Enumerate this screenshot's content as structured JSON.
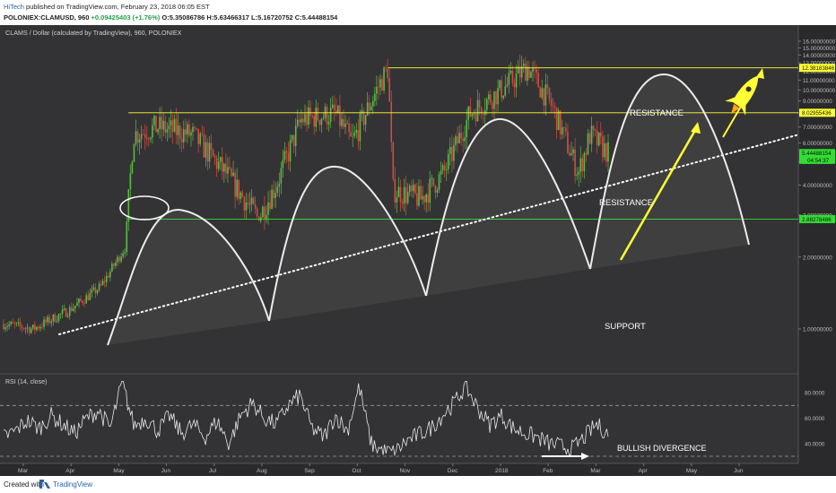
{
  "header": {
    "author": "HiTech",
    "published": "published on TradingView.com, February 23, 2018 06:05 EST",
    "symbol_line": "POLONIEX:CLAMUSD, 960",
    "change": "+0.09425403 (+1.76%)",
    "ohlc": "O:5.35086786 H:5.63466317 L:5.16720752 C:5.44488154"
  },
  "chart_title": "CLAMS / Dollar (calculated by TradingView), 960, POLONIEX",
  "price_axis": {
    "ticks": [
      {
        "value": 1,
        "label": "1.00000000"
      },
      {
        "value": 2,
        "label": "2.00000000"
      },
      {
        "value": 3,
        "label": "3.00000000"
      },
      {
        "value": 4,
        "label": "4.00000000"
      },
      {
        "value": 5,
        "label": "5.00000000"
      },
      {
        "value": 6,
        "label": "6.00000000"
      },
      {
        "value": 7,
        "label": "7.00000000"
      },
      {
        "value": 8,
        "label": "8.00000000"
      },
      {
        "value": 9,
        "label": "9.00000000"
      },
      {
        "value": 10,
        "label": "10.00000000"
      },
      {
        "value": 11,
        "label": "11.00000000"
      },
      {
        "value": 12,
        "label": "12.00000000"
      },
      {
        "value": 13,
        "label": "13.00000000"
      },
      {
        "value": 14,
        "label": "14.00000000"
      },
      {
        "value": 15,
        "label": "15.00000000"
      },
      {
        "value": 16,
        "label": "16.00000000"
      }
    ],
    "markers": [
      {
        "value": 12.38183846,
        "label": "12.38183846",
        "color": "#ffff33"
      },
      {
        "value": 8.02955436,
        "label": "8.02955436",
        "color": "#ffff33"
      },
      {
        "value": 5.44488154,
        "label": "5.44488154",
        "color": "#33dd33"
      },
      {
        "value": 2.88278486,
        "label": "2.88278486",
        "color": "#33dd33"
      }
    ],
    "countdown": "04:54:37"
  },
  "rsi": {
    "title": "RSI (14, close)",
    "ticks": [
      {
        "value": 80,
        "label": "80.0000"
      },
      {
        "value": 60,
        "label": "60.0000"
      },
      {
        "value": 40,
        "label": "40.0000"
      }
    ]
  },
  "time_axis": [
    "Mar",
    "Apr",
    "May",
    "Jun",
    "Jul",
    "Aug",
    "Sep",
    "Oct",
    "Nov",
    "Dec",
    "2018",
    "Feb",
    "Mar",
    "Apr",
    "May",
    "Jun"
  ],
  "annotations": {
    "resistance_upper": "RESISTANCE",
    "resistance_lower": "RESISTANCE",
    "support": "SUPPORT",
    "divergence": "BULLISH DIVERGENCE"
  },
  "footer": {
    "created_with": "Created with",
    "brand": "TradingView"
  },
  "colors": {
    "background": "#333335",
    "up": "#5fb846",
    "down": "#d74b42",
    "resistance": "#ffff33",
    "support": "#33dd33",
    "annotation": "#ffffff",
    "rocket": "#ffff33"
  },
  "chart_data": {
    "type": "candlestick",
    "title": "CLAMS / Dollar (calculated by TradingView), 960, POLONIEX",
    "yscale": "log",
    "ylim": [
      1,
      16
    ],
    "x_range": [
      "2017-02",
      "2018-06"
    ],
    "series": [
      {
        "name": "CLAMUSD",
        "path": [
          {
            "x": "2017-02-20",
            "y": 1.05
          },
          {
            "x": "2017-03-10",
            "y": 1.0
          },
          {
            "x": "2017-04-01",
            "y": 1.2
          },
          {
            "x": "2017-04-20",
            "y": 1.5
          },
          {
            "x": "2017-05-05",
            "y": 2.2
          },
          {
            "x": "2017-05-10",
            "y": 6.5
          },
          {
            "x": "2017-05-25",
            "y": 7.0
          },
          {
            "x": "2017-06-15",
            "y": 6.5
          },
          {
            "x": "2017-07-05",
            "y": 4.5
          },
          {
            "x": "2017-07-25",
            "y": 2.9
          },
          {
            "x": "2017-08-05",
            "y": 4.0
          },
          {
            "x": "2017-08-20",
            "y": 7.5
          },
          {
            "x": "2017-09-10",
            "y": 8.0
          },
          {
            "x": "2017-09-20",
            "y": 6.0
          },
          {
            "x": "2017-10-05",
            "y": 10.0
          },
          {
            "x": "2017-10-12",
            "y": 12.3
          },
          {
            "x": "2017-10-15",
            "y": 3.8
          },
          {
            "x": "2017-11-01",
            "y": 3.5
          },
          {
            "x": "2017-11-15",
            "y": 4.5
          },
          {
            "x": "2017-12-01",
            "y": 8.0
          },
          {
            "x": "2017-12-20",
            "y": 10.0
          },
          {
            "x": "2018-01-05",
            "y": 12.5
          },
          {
            "x": "2018-01-20",
            "y": 8.5
          },
          {
            "x": "2018-02-05",
            "y": 4.5
          },
          {
            "x": "2018-02-12",
            "y": 6.5
          },
          {
            "x": "2018-02-23",
            "y": 5.44
          }
        ]
      }
    ],
    "horizontal_levels": [
      {
        "label": "RESISTANCE",
        "value": 12.38183846
      },
      {
        "label": "RESISTANCE",
        "value": 8.02955436
      },
      {
        "label": "SUPPORT",
        "value": 2.88278486
      }
    ],
    "trendline": [
      {
        "x": "2017-03-01",
        "y": 0.95
      },
      {
        "x": "2018-06-30",
        "y": 6.5
      }
    ],
    "rsi": {
      "name": "RSI (14, close)",
      "ylim": [
        30,
        90
      ],
      "bands": [
        30,
        70
      ],
      "values": [
        45,
        50,
        58,
        52,
        62,
        55,
        48,
        60,
        66,
        52,
        88,
        54,
        60,
        50,
        62,
        48,
        55,
        45,
        58,
        40,
        62,
        72,
        60,
        55,
        70,
        78,
        52,
        45,
        62,
        50,
        85,
        40,
        34,
        33,
        42,
        47,
        52,
        62,
        72,
        85,
        68,
        55,
        62,
        52,
        48,
        45,
        40,
        38,
        36,
        45,
        55,
        48
      ]
    }
  }
}
